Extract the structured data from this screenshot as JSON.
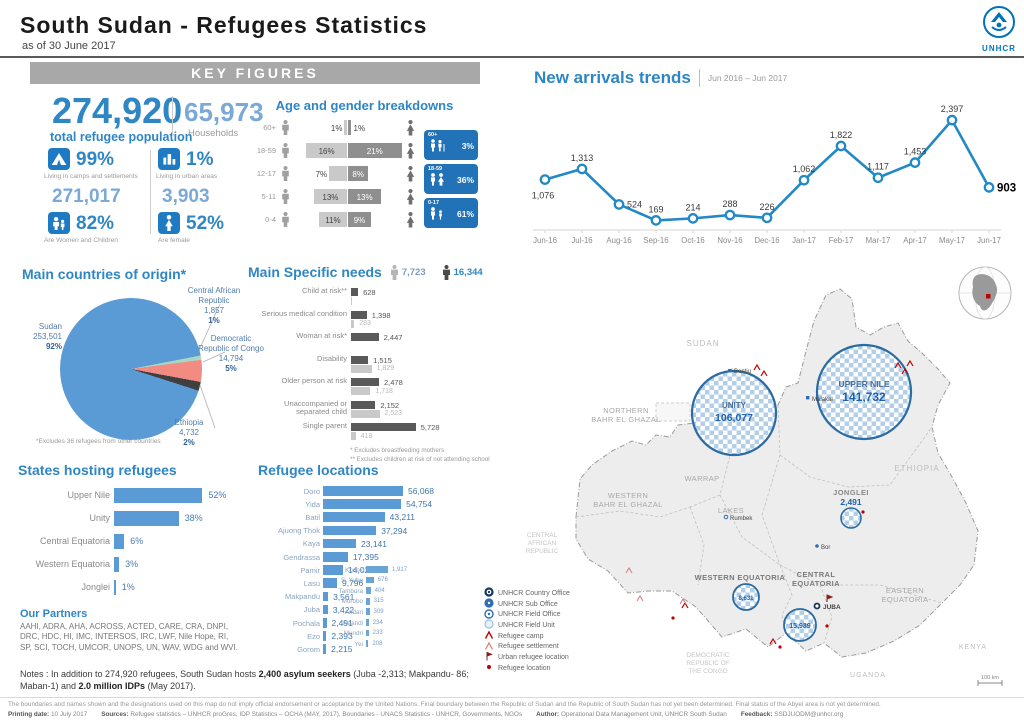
{
  "header": {
    "title": "South Sudan - Refugees Statistics",
    "subtitle": "as of 30 June 2017",
    "logo_text": "UNHCR"
  },
  "key_figures": {
    "banner": "KEY FIGURES",
    "total_value": "274,920",
    "total_label": "total refugee population",
    "households_value": "65,973",
    "households_label": "Households",
    "camps_pct": "99%",
    "camps_label": "Living in camps and settlements",
    "camps_value": "271,017",
    "urban_pct": "1%",
    "urban_label": "Living in urban areas",
    "urban_value": "3,903",
    "women_children_pct": "82%",
    "women_children_label": "Are Women and Children",
    "female_pct": "52%",
    "female_label": "Are female"
  },
  "chart_data": [
    {
      "type": "line",
      "title": "New arrivals trends",
      "subtitle": "Jun 2016 – Jun 2017",
      "x": [
        "Jun-16",
        "Jul-16",
        "Aug-16",
        "Sep-16",
        "Oct-16",
        "Nov-16",
        "Dec-16",
        "Jan-17",
        "Feb-17",
        "Mar-17",
        "Apr-17",
        "May-17",
        "Jun-17"
      ],
      "values": [
        1076,
        1313,
        524,
        169,
        214,
        288,
        226,
        1062,
        1822,
        1117,
        1453,
        2397,
        903
      ],
      "labels": [
        "1,076",
        "1,313",
        "524",
        "169",
        "214",
        "288",
        "226",
        "1,062",
        "1,822",
        "1,117",
        "1,453",
        "2,397",
        "903"
      ],
      "color": "#2288c6",
      "ylim": [
        0,
        2400
      ],
      "grid": false
    },
    {
      "type": "pyramid",
      "title": "Age and gender breakdowns",
      "rows": [
        {
          "age": "60+",
          "male": 1,
          "female": 1,
          "male_label": "1%",
          "female_label": "1%"
        },
        {
          "age": "18-59",
          "male": 16,
          "female": 21,
          "male_label": "16%",
          "female_label": "21%"
        },
        {
          "age": "12-17",
          "male": 7,
          "female": 8,
          "male_label": "7%",
          "female_label": "8%"
        },
        {
          "age": "5-11",
          "male": 13,
          "female": 13,
          "male_label": "13%",
          "female_label": "13%"
        },
        {
          "age": "0-4",
          "male": 11,
          "female": 9,
          "male_label": "11%",
          "female_label": "9%"
        }
      ],
      "summary": [
        {
          "group": "60+",
          "pct": "3%"
        },
        {
          "group": "18-59",
          "pct": "36%"
        },
        {
          "group": "0-17",
          "pct": "61%"
        }
      ]
    },
    {
      "type": "pie",
      "title": "Main countries of origin*",
      "slices": [
        {
          "name": "Sudan",
          "value": "253,501",
          "pct": "92%",
          "pct_num": 92,
          "color": "#5b9bd5"
        },
        {
          "name": "Central African Republic",
          "value": "1,857",
          "pct": "1%",
          "pct_num": 1,
          "color": "#a9d5c5"
        },
        {
          "name": "Democratic Republic of Congo",
          "value": "14,794",
          "pct": "5%",
          "pct_num": 5,
          "color": "#f28b82"
        },
        {
          "name": "Ethiopia",
          "value": "4,732",
          "pct": "2%",
          "pct_num": 2,
          "color": "#3f3f3f"
        }
      ],
      "footnote": "*Excludes 36 refugees from other countries"
    },
    {
      "type": "bar",
      "title": "Main Specific needs",
      "legend": [
        {
          "icon": "person-light",
          "value": "7,723"
        },
        {
          "icon": "person-dark",
          "value": "16,344"
        }
      ],
      "rows": [
        {
          "label": "Child at risk**",
          "dark": 628,
          "dark_label": "628",
          "light": 90,
          "light_label": ""
        },
        {
          "label": "Serious medical condition",
          "dark": 1398,
          "dark_label": "1,398",
          "light": 283,
          "light_label": "283"
        },
        {
          "label": "Woman at risk*",
          "dark": 2447,
          "dark_label": "2,447",
          "light": 0,
          "light_label": ""
        },
        {
          "label": "Disability",
          "dark": 1515,
          "dark_label": "1,515",
          "light": 1829,
          "light_label": "1,829"
        },
        {
          "label": "Older person at risk",
          "dark": 2478,
          "dark_label": "2,478",
          "light": 1718,
          "light_label": "1,718"
        },
        {
          "label": "Unaccompanied or separated child",
          "dark": 2152,
          "dark_label": "2,152",
          "light": 2523,
          "light_label": "2,523"
        },
        {
          "label": "Single parent",
          "dark": 5728,
          "dark_label": "5,728",
          "light": 418,
          "light_label": "418"
        }
      ],
      "footnotes": [
        "*  Excludes breastfeeding mothers",
        "** Excludes children at risk of not attending school"
      ]
    },
    {
      "type": "bar",
      "title": "States hosting refugees",
      "categories": [
        "Upper Nile",
        "Unity",
        "Central Equatoria",
        "Western Equatoria",
        "Jonglei"
      ],
      "values": [
        52,
        38,
        6,
        3,
        1
      ],
      "labels": [
        "52%",
        "38%",
        "6%",
        "3%",
        "1%"
      ]
    },
    {
      "type": "bar",
      "title": "Refugee locations",
      "categories": [
        "Doro",
        "Yida",
        "Batil",
        "Ajuong Thok",
        "Kaya",
        "Gendrassa",
        "Pamir",
        "Lasu",
        "Makpandu",
        "Juba",
        "Pochala",
        "Ezo",
        "Gorom"
      ],
      "values": [
        56068,
        54754,
        43211,
        37294,
        23141,
        17395,
        14029,
        9796,
        3561,
        3422,
        2491,
        2393,
        2215
      ],
      "labels": [
        "56,068",
        "54,754",
        "43,211",
        "37,294",
        "23,141",
        "17,395",
        "14,029",
        "9,796",
        "3,561",
        "3,422",
        "2,491",
        "2,393",
        "2,215"
      ]
    },
    {
      "type": "bar",
      "title": "Refugee locations (small sites)",
      "categories": [
        "Kodok",
        "S. Yubu",
        "Tambura",
        "Morobo",
        "Andari",
        "Naandi",
        "Mundri",
        "Yei"
      ],
      "values": [
        1917,
        676,
        404,
        315,
        309,
        234,
        233,
        208
      ],
      "labels": [
        "1,917",
        "676",
        "404",
        "315",
        "309",
        "234",
        "233",
        "208"
      ]
    }
  ],
  "partners": {
    "title": "Our Partners",
    "text": "AAHI, ADRA, AHA, ACROSS, ACTED, CARE, CRA, DNPI, DRC, HDC, HI, IMC, INTERSOS, IRC, LWF, Nile Hope, RI, SP, SCI, TOCH, UMCOR, UNOPS, UN, WAV, WDG and WVI."
  },
  "notes": {
    "segments": [
      {
        "text": "Notes : In addition to 274,920 refugees, South Sudan hosts ",
        "bold": false
      },
      {
        "text": "2,400 asylum seekers",
        "bold": true
      },
      {
        "text": " (Juba -2,313; Makpandu- 86; Maban-1) and ",
        "bold": false
      },
      {
        "text": "2.0 million IDPs",
        "bold": true
      },
      {
        "text": " (May 2017).",
        "bold": false
      }
    ]
  },
  "map": {
    "neighbors": {
      "sudan": "SUDAN",
      "ethiopia": "ETHIOPIA",
      "kenya": "KENYA",
      "uganda": "UGANDA",
      "drc": [
        "DEMOCRATIC",
        "REPUBLIC OF",
        "THE CONGO"
      ],
      "car": [
        "CENTRAL",
        "AFRICAN",
        "REPUBLIC"
      ]
    },
    "states": {
      "nbg": [
        "NORTHERN",
        "BAHR EL GHAZAL"
      ],
      "wbg": [
        "WESTERN",
        "BAHR EL GHAZAL"
      ],
      "warrap": "WARRAP",
      "lakes": "LAKES",
      "we": "WESTERN EQUATORIA",
      "ce": [
        "CENTRAL",
        "EQUATORIA"
      ],
      "ee": [
        "EASTERN",
        "EQUATORIA"
      ]
    },
    "bubbles": {
      "unity": {
        "name": "UNITY",
        "value": "106,077"
      },
      "upper_nile": {
        "name": "UPPER NILE",
        "value": "141,732"
      },
      "jonglei": {
        "name": "JONGLEI",
        "value": "2,491"
      },
      "western_equatoria": {
        "value": "8,631"
      },
      "central_equatoria": {
        "value": "15,989"
      }
    },
    "towns": {
      "bentiu": "Bentiu",
      "malakal": "Malakal",
      "rumbek": "Rumbek",
      "bor": "Bor",
      "juba": "JUBA"
    },
    "legend": [
      {
        "icon": "country-office",
        "label": "UNHCR Country Office"
      },
      {
        "icon": "sub-office",
        "label": "UNHCR Sub Office"
      },
      {
        "icon": "field-office",
        "label": "UNHCR Field Office"
      },
      {
        "icon": "field-unit",
        "label": "UNHCR Field Unit"
      },
      {
        "icon": "camp",
        "label": "Refugee camp"
      },
      {
        "icon": "settlement",
        "label": "Refugee settlement"
      },
      {
        "icon": "urban",
        "label": "Urban refugee location"
      },
      {
        "icon": "location",
        "label": "Refugee location"
      }
    ],
    "scale_label": "100 km"
  },
  "footer": {
    "line1": "The boundaries and names shown and the designations used on this map do not imply official endorsement or acceptance by the United Nations. Final boundary between the Republic of Sudan and the Republic of South Sudan has not yet been determined. Final status of the Abyei area is not yet determined.",
    "printing_label": "Printing date:",
    "printing_value": "10 July 2017",
    "sources_label": "Sources:",
    "sources_value": "Refugee statistics – UNHCR proGres, IDP Statistics – OCHA (MAY, 2017), Boundaries - UNACS Statistics - UNHCR, Governments, NGOs",
    "author_label": "Author:",
    "author_value": "Operational Data Management Unit, UNHCR South Sudan",
    "feedback_label": "Feedback:",
    "feedback_value": "SSDJUODM@unhcr.org"
  }
}
